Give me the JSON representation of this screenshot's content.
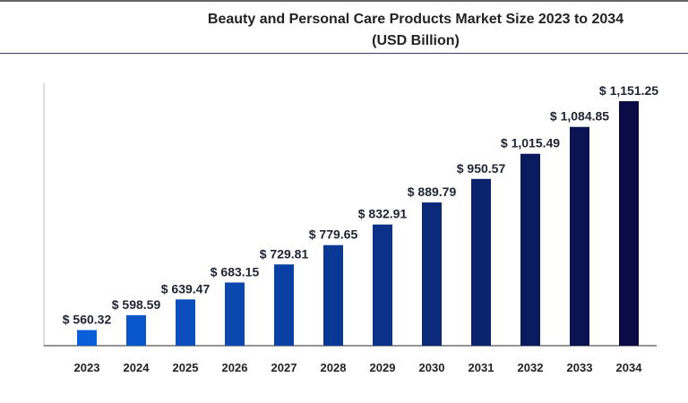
{
  "chart_data": {
    "type": "bar",
    "title": "Beauty and Personal Care Products Market Size 2023 to 2034",
    "subtitle": "(USD Billion)",
    "xlabel": "",
    "ylabel": "",
    "categories": [
      "2023",
      "2024",
      "2025",
      "2026",
      "2027",
      "2028",
      "2029",
      "2030",
      "2031",
      "2032",
      "2033",
      "2034"
    ],
    "values": [
      560.32,
      598.59,
      639.47,
      683.15,
      729.81,
      779.65,
      832.91,
      889.79,
      950.57,
      1015.49,
      1084.85,
      1151.25
    ],
    "data_labels": [
      "$ 560.32",
      "$ 598.59",
      "$ 639.47",
      "$ 683.15",
      "$ 729.81",
      "$ 779.65",
      "$ 832.91",
      "$ 889.79",
      "$ 950.57",
      "$ 1,015.49",
      "$ 1,084.85",
      "$ 1,151.25"
    ],
    "grid": false,
    "legend": "none",
    "colors": {
      "start": "#0a5ed8",
      "end": "#0b0c45",
      "axis": "#555555"
    }
  }
}
